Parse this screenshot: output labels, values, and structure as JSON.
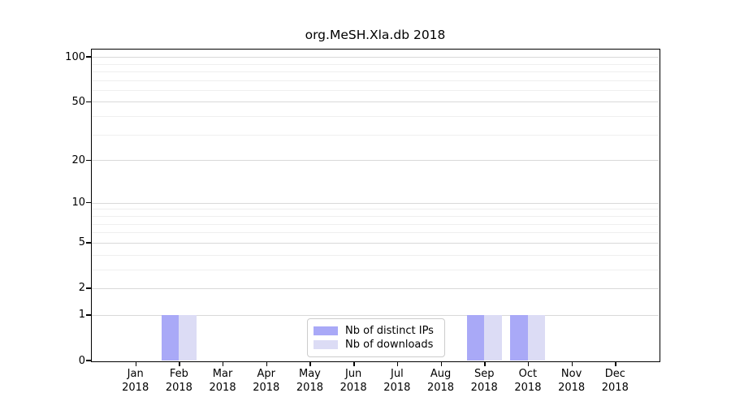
{
  "chart_data": {
    "type": "bar",
    "title": "org.MeSH.Xla.db 2018",
    "categories": [
      "Jan",
      "Feb",
      "Mar",
      "Apr",
      "May",
      "Jun",
      "Jul",
      "Aug",
      "Sep",
      "Oct",
      "Nov",
      "Dec"
    ],
    "year_label": "2018",
    "series": [
      {
        "name": "Nb of distinct IPs",
        "color": "#a9a9f7",
        "values": [
          0,
          1,
          0,
          0,
          0,
          0,
          0,
          0,
          1,
          1,
          0,
          0
        ]
      },
      {
        "name": "Nb of downloads",
        "color": "#dcdcf5",
        "values": [
          0,
          1,
          0,
          0,
          0,
          0,
          0,
          0,
          1,
          1,
          0,
          0
        ]
      }
    ],
    "y_axis": {
      "scale": "log1p",
      "tick_values": [
        0,
        1,
        2,
        5,
        10,
        20,
        50,
        100
      ],
      "minor_gridline_values": [
        3,
        4,
        6,
        7,
        8,
        9,
        30,
        40,
        60,
        70,
        80,
        90
      ],
      "max": 112
    },
    "x_axis": {
      "tick_count": 12
    },
    "grid": "on",
    "legend_position": "lower center",
    "colors": {
      "major_grid": "#d9d9d9",
      "minor_grid": "#efefef",
      "frame": "#000000",
      "background": "#ffffff"
    }
  }
}
